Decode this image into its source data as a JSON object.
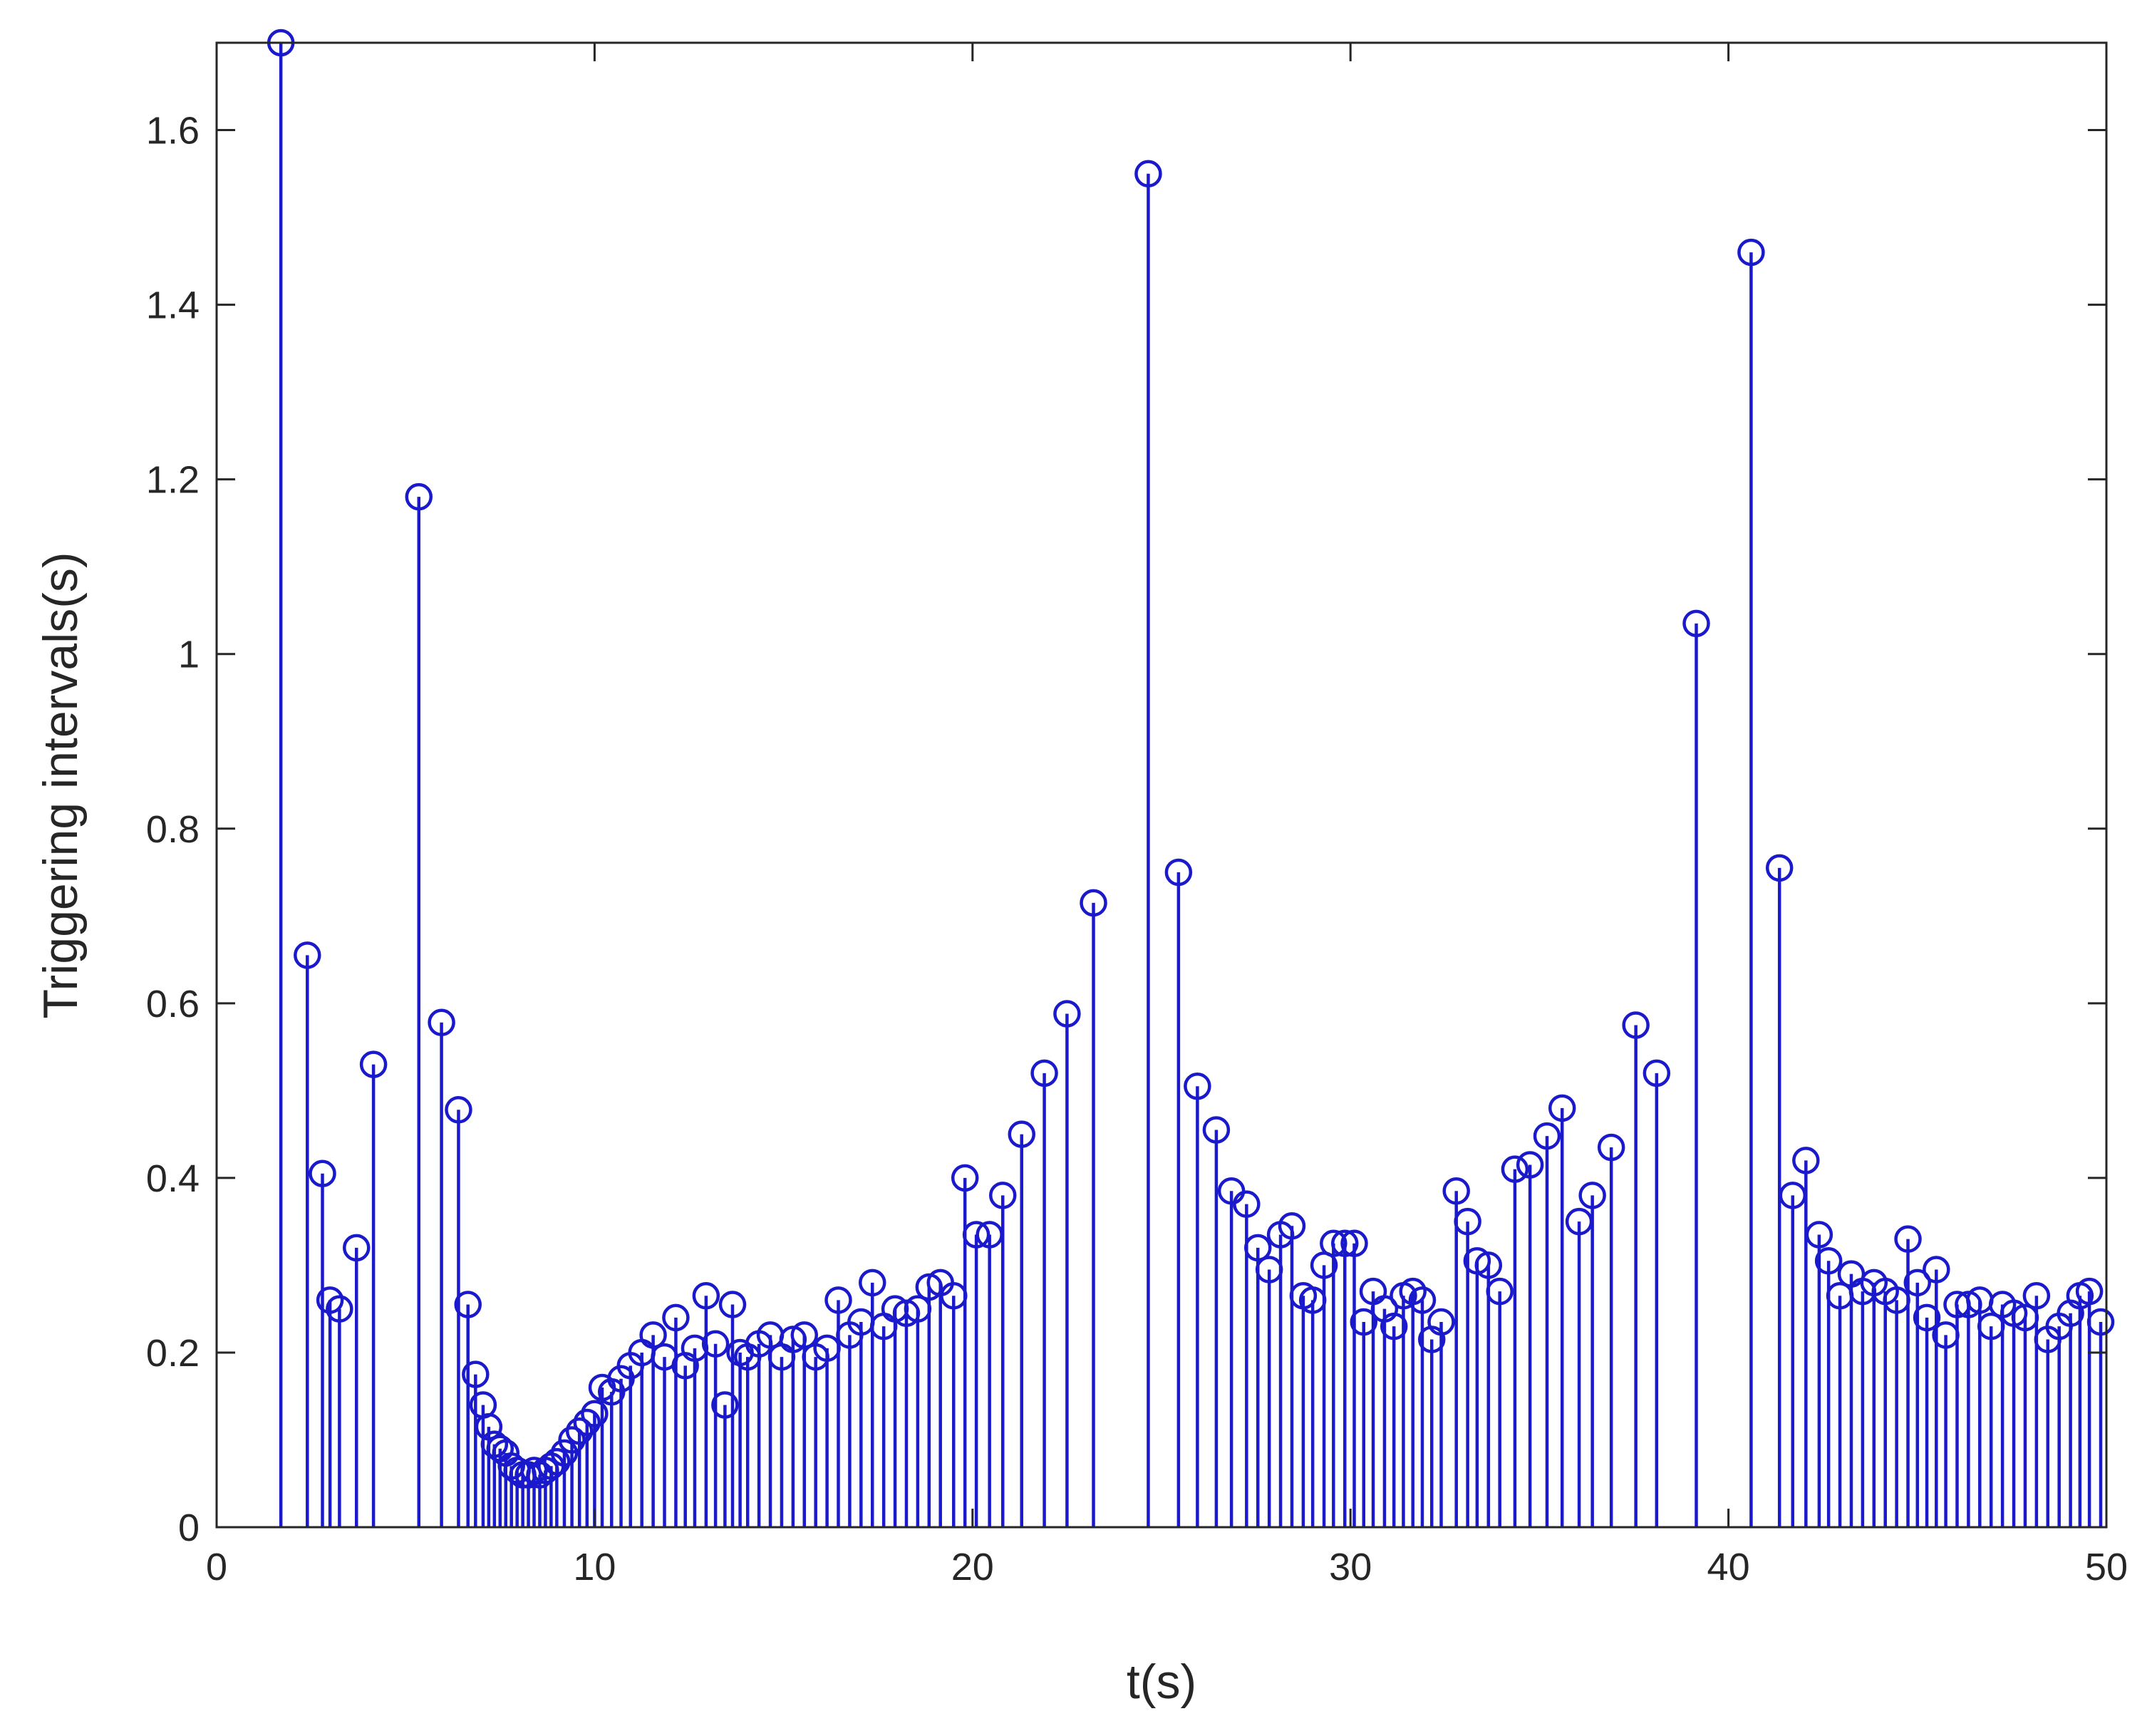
{
  "chart_data": {
    "type": "stem",
    "title": "",
    "xlabel": "t(s)",
    "ylabel": "Triggering intervals(s)",
    "xlim": [
      0,
      50
    ],
    "ylim": [
      0,
      1.7
    ],
    "xticks": [
      "0",
      "10",
      "20",
      "30",
      "40",
      "50"
    ],
    "yticks": [
      "0",
      "0.2",
      "0.4",
      "0.6",
      "0.8",
      "1",
      "1.2",
      "1.4",
      "1.6"
    ],
    "grid": false,
    "legend": "none",
    "marker": "circle",
    "color": "#1a1acc",
    "series": [
      {
        "x": [
          1.7,
          2.4,
          2.8,
          3.0,
          3.25,
          3.7,
          4.15,
          5.35,
          5.95,
          6.4,
          6.65,
          6.85,
          7.05,
          7.2,
          7.35,
          7.5,
          7.65,
          7.8,
          7.95,
          8.1,
          8.25,
          8.4,
          8.55,
          8.7,
          8.85,
          9.0,
          9.2,
          9.4,
          9.6,
          9.8,
          10.0,
          10.2,
          10.45,
          10.7,
          10.95,
          11.25,
          11.55,
          11.85,
          12.15,
          12.4,
          12.65,
          12.95,
          13.2,
          13.45,
          13.65,
          13.85,
          14.05,
          14.35,
          14.65,
          14.95,
          15.25,
          15.55,
          15.85,
          16.15,
          16.45,
          16.75,
          17.05,
          17.35,
          17.65,
          17.95,
          18.25,
          18.55,
          18.85,
          19.15,
          19.5,
          19.8,
          20.1,
          20.45,
          20.8,
          21.3,
          21.9,
          22.5,
          23.2,
          24.65,
          25.45,
          25.95,
          26.45,
          26.85,
          27.25,
          27.55,
          27.85,
          28.15,
          28.45,
          28.75,
          29.0,
          29.3,
          29.55,
          29.85,
          30.1,
          30.35,
          30.6,
          30.9,
          31.15,
          31.4,
          31.65,
          31.9,
          32.15,
          32.4,
          32.8,
          33.1,
          33.35,
          33.65,
          33.95,
          34.35,
          34.75,
          35.2,
          35.6,
          36.05,
          36.4,
          36.9,
          37.55,
          38.1,
          39.15,
          40.6,
          41.35,
          41.7,
          42.05,
          42.4,
          42.65,
          42.95,
          43.25,
          43.55,
          43.85,
          44.15,
          44.45,
          44.75,
          45.0,
          45.25,
          45.5,
          45.75,
          46.05,
          46.35,
          46.65,
          46.95,
          47.25,
          47.55,
          47.85,
          48.15,
          48.45,
          48.75,
          49.05,
          49.3,
          49.55,
          49.85
        ],
        "y": [
          1.7,
          0.655,
          0.405,
          0.26,
          0.25,
          0.32,
          0.53,
          1.18,
          0.578,
          0.478,
          0.255,
          0.175,
          0.14,
          0.115,
          0.095,
          0.09,
          0.085,
          0.07,
          0.065,
          0.06,
          0.06,
          0.065,
          0.06,
          0.065,
          0.07,
          0.075,
          0.085,
          0.1,
          0.11,
          0.12,
          0.13,
          0.16,
          0.155,
          0.17,
          0.185,
          0.2,
          0.22,
          0.195,
          0.24,
          0.185,
          0.205,
          0.265,
          0.21,
          0.14,
          0.255,
          0.2,
          0.195,
          0.21,
          0.22,
          0.195,
          0.215,
          0.22,
          0.195,
          0.205,
          0.26,
          0.22,
          0.235,
          0.28,
          0.23,
          0.25,
          0.245,
          0.25,
          0.275,
          0.28,
          0.265,
          0.4,
          0.335,
          0.335,
          0.38,
          0.45,
          0.52,
          0.588,
          0.715,
          1.55,
          0.75,
          0.505,
          0.455,
          0.385,
          0.37,
          0.32,
          0.295,
          0.335,
          0.345,
          0.265,
          0.26,
          0.3,
          0.325,
          0.325,
          0.325,
          0.235,
          0.27,
          0.25,
          0.23,
          0.265,
          0.27,
          0.26,
          0.215,
          0.235,
          0.385,
          0.35,
          0.305,
          0.3,
          0.27,
          0.41,
          0.415,
          0.448,
          0.48,
          0.35,
          0.38,
          0.435,
          0.575,
          0.52,
          1.035,
          1.46,
          0.755,
          0.38,
          0.42,
          0.335,
          0.305,
          0.265,
          0.29,
          0.27,
          0.28,
          0.27,
          0.26,
          0.33,
          0.28,
          0.24,
          0.295,
          0.22,
          0.255,
          0.255,
          0.26,
          0.23,
          0.255,
          0.245,
          0.24,
          0.265,
          0.215,
          0.23,
          0.245,
          0.265,
          0.27,
          0.235
        ]
      }
    ]
  }
}
